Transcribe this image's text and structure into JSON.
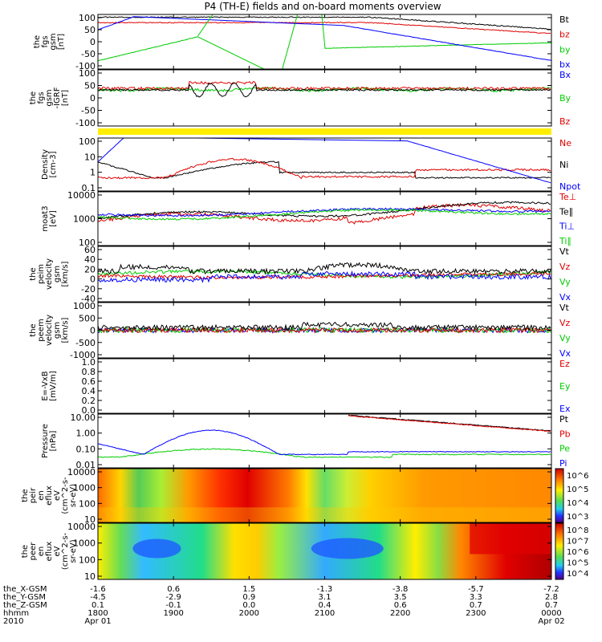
{
  "title": "P4 (TH-E) fields and on-board moments overview",
  "colors": {
    "black": "#000000",
    "red": "#e00000",
    "green": "#00cc00",
    "blue": "#0000ff",
    "yellow": "#ffee00"
  },
  "chart_data": [
    {
      "type": "line",
      "ylabel_lines": [
        "the",
        "fgs",
        "gsm",
        "[nT]"
      ],
      "yticks": [
        "100",
        "50",
        "0",
        "-50",
        "-100"
      ],
      "ylim": [
        -100,
        100
      ],
      "legend": [
        {
          "label": "Bt",
          "color": "#000000"
        },
        {
          "label": "bz",
          "color": "#e00000"
        },
        {
          "label": "by",
          "color": "#00cc00"
        },
        {
          "label": "bx",
          "color": "#0000ff"
        }
      ]
    },
    {
      "type": "line",
      "ylabel_lines": [
        "the",
        "fgs",
        "gsm",
        "-IGRF",
        "[nT]"
      ],
      "yticks": [
        "100",
        "50",
        "0",
        "-50",
        "-100"
      ],
      "ylim": [
        -120,
        100
      ],
      "legend": [
        {
          "label": "Bx",
          "color": "#0000ff"
        },
        {
          "label": "By",
          "color": "#00cc00"
        },
        {
          "label": "Bz",
          "color": "#e00000"
        }
      ]
    },
    {
      "type": "line",
      "ylabel_lines": [
        "Density",
        "[cm-3]"
      ],
      "yticks": [
        "100",
        "10",
        "1",
        "0.1"
      ],
      "ylim": [
        0.05,
        200
      ],
      "scale": "log",
      "legend": [
        {
          "label": "Ne",
          "color": "#e00000"
        },
        {
          "label": "Ni",
          "color": "#000000"
        },
        {
          "label": "Npot",
          "color": "#0000ff"
        }
      ]
    },
    {
      "type": "line",
      "ylabel_lines": [
        "moat3",
        "[eV]"
      ],
      "yticks": [
        "10000",
        "1000",
        "100"
      ],
      "ylim": [
        20,
        15000
      ],
      "scale": "log",
      "legend": [
        {
          "label": "Te⊥",
          "color": "#e00000"
        },
        {
          "label": "Te∥",
          "color": "#000000"
        },
        {
          "label": "Ti⊥",
          "color": "#0000ff"
        },
        {
          "label": "Ti∥",
          "color": "#00cc00"
        }
      ]
    },
    {
      "type": "line",
      "ylabel_lines": [
        "the",
        "peim",
        "velocity",
        "gsm",
        "[km/s]"
      ],
      "yticks": [
        "60",
        "40",
        "20",
        "0",
        "-20",
        "-40"
      ],
      "ylim": [
        -40,
        60
      ],
      "legend": [
        {
          "label": "Vt",
          "color": "#000000"
        },
        {
          "label": "Vz",
          "color": "#e00000"
        },
        {
          "label": "Vy",
          "color": "#00cc00"
        },
        {
          "label": "Vx",
          "color": "#0000ff"
        }
      ]
    },
    {
      "type": "line",
      "ylabel_lines": [
        "the",
        "peem",
        "velocity",
        "gsm",
        "[km/s]"
      ],
      "yticks": [
        "1000",
        "500",
        "0",
        "-500",
        "-1000"
      ],
      "ylim": [
        -1000,
        1000
      ],
      "legend": [
        {
          "label": "Vt",
          "color": "#000000"
        },
        {
          "label": "Vz",
          "color": "#e00000"
        },
        {
          "label": "Vy",
          "color": "#00cc00"
        },
        {
          "label": "Vx",
          "color": "#0000ff"
        }
      ]
    },
    {
      "type": "line",
      "ylabel_lines": [
        "E=-VxB",
        "[mV/m]"
      ],
      "yticks": [
        "1.0",
        "0.8",
        "0.6",
        "0.4",
        "0.2",
        "0.0"
      ],
      "ylim": [
        0,
        1
      ],
      "legend": [
        {
          "label": "Ez",
          "color": "#e00000"
        },
        {
          "label": "Ey",
          "color": "#00cc00"
        },
        {
          "label": "Ex",
          "color": "#0000ff"
        }
      ]
    },
    {
      "type": "line",
      "ylabel_lines": [
        "Pressure",
        "[nPa]"
      ],
      "yticks": [
        "10.00",
        "1.00",
        "0.10",
        "0.01"
      ],
      "ylim": [
        0.005,
        30
      ],
      "scale": "log",
      "legend": [
        {
          "label": "Pt",
          "color": "#000000"
        },
        {
          "label": "Pb",
          "color": "#e00000"
        },
        {
          "label": "Pe",
          "color": "#00cc00"
        },
        {
          "label": "Pi",
          "color": "#0000ff"
        }
      ]
    },
    {
      "type": "heatmap",
      "ylabel_lines": [
        "the",
        "peir",
        "en",
        "eflux",
        "eV",
        "(cm^2-s-",
        "sr-eV)"
      ],
      "yticks": [
        "10000",
        "1000",
        "100",
        "10"
      ],
      "ylim": [
        5,
        25000
      ],
      "scale": "log",
      "colorbar_ticks": [
        "10^6",
        "10^5",
        "10^4",
        "10^3"
      ]
    },
    {
      "type": "heatmap",
      "ylabel_lines": [
        "the",
        "peer",
        "en",
        "eflux",
        "eV",
        "(cm^2-s-",
        "sr-eV)"
      ],
      "yticks": [
        "10000",
        "1000",
        "100",
        "10"
      ],
      "ylim": [
        5,
        25000
      ],
      "scale": "log",
      "colorbar_ticks": [
        "10^8",
        "10^7",
        "10^6",
        "10^5",
        "10^4"
      ]
    }
  ],
  "xaxis": {
    "rows": [
      {
        "label": "the_X-GSM",
        "values": [
          "-1.6",
          "0.6",
          "1.5",
          "-1.3",
          "-3.8",
          "-5.7",
          "-7.2"
        ]
      },
      {
        "label": "the_Y-GSM",
        "values": [
          "-4.5",
          "-2.9",
          "0.9",
          "3.1",
          "3.5",
          "3.3",
          "2.8"
        ]
      },
      {
        "label": "the_Z-GSM",
        "values": [
          "0.1",
          "-0.1",
          "0.0",
          "0.4",
          "0.6",
          "0.7",
          "0.7"
        ]
      },
      {
        "label": "hhmm",
        "values": [
          "1800",
          "1900",
          "2000",
          "2100",
          "2200",
          "2300",
          "0000"
        ]
      },
      {
        "label": "2010",
        "values": [
          "Apr 01",
          "",
          "",
          "",
          "",
          "",
          "Apr 02"
        ]
      }
    ]
  }
}
